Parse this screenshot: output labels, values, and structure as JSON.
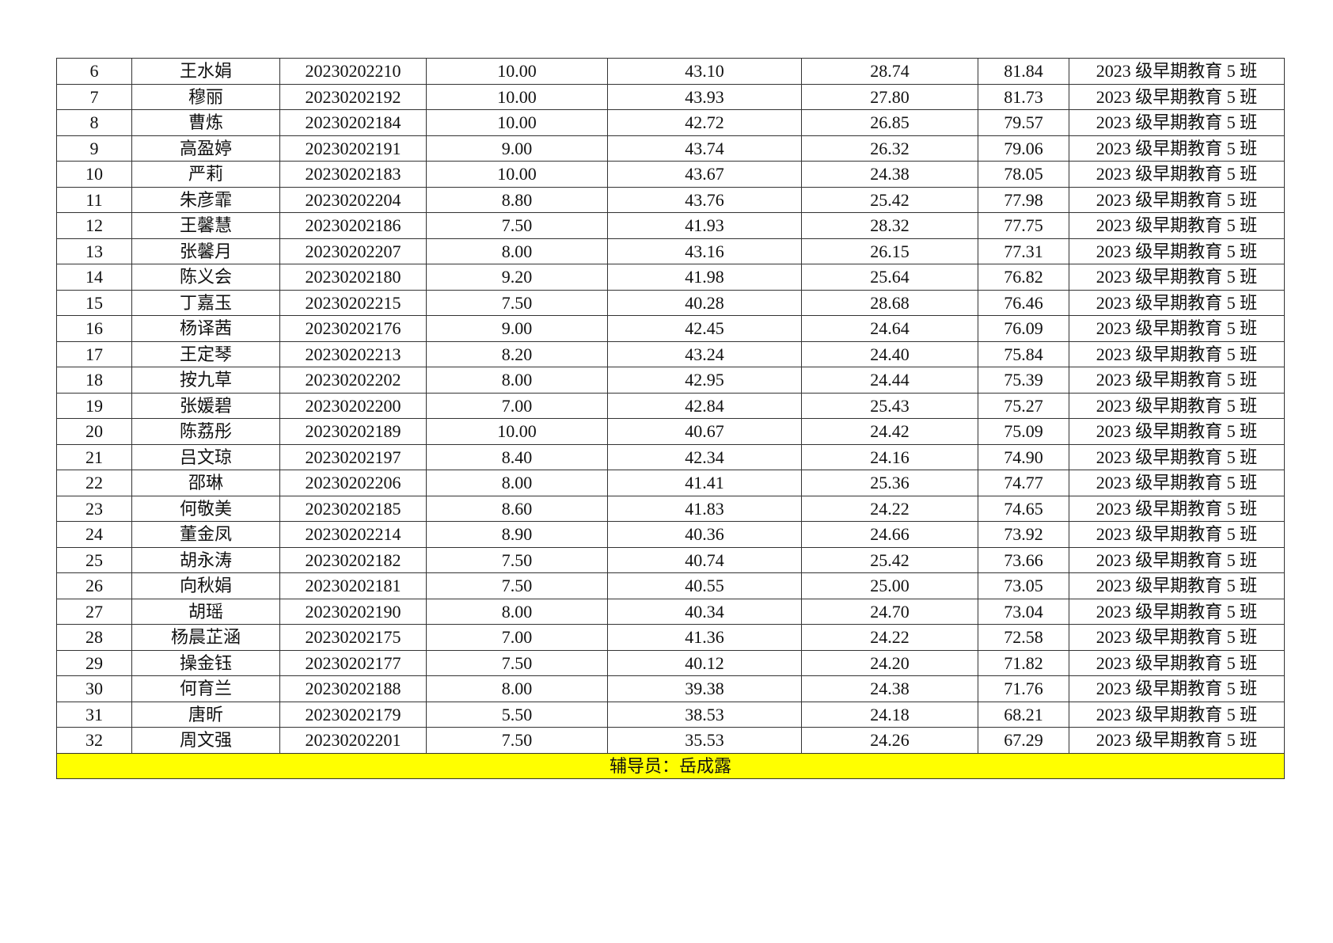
{
  "rows": [
    [
      "6",
      "王水娟",
      "20230202210",
      "10.00",
      "43.10",
      "28.74",
      "81.84",
      "2023 级早期教育 5 班"
    ],
    [
      "7",
      "穆丽",
      "20230202192",
      "10.00",
      "43.93",
      "27.80",
      "81.73",
      "2023 级早期教育 5 班"
    ],
    [
      "8",
      "曹炼",
      "20230202184",
      "10.00",
      "42.72",
      "26.85",
      "79.57",
      "2023 级早期教育 5 班"
    ],
    [
      "9",
      "高盈婷",
      "20230202191",
      "9.00",
      "43.74",
      "26.32",
      "79.06",
      "2023 级早期教育 5 班"
    ],
    [
      "10",
      "严莉",
      "20230202183",
      "10.00",
      "43.67",
      "24.38",
      "78.05",
      "2023 级早期教育 5 班"
    ],
    [
      "11",
      "朱彦霏",
      "20230202204",
      "8.80",
      "43.76",
      "25.42",
      "77.98",
      "2023 级早期教育 5 班"
    ],
    [
      "12",
      "王馨慧",
      "20230202186",
      "7.50",
      "41.93",
      "28.32",
      "77.75",
      "2023 级早期教育 5 班"
    ],
    [
      "13",
      "张馨月",
      "20230202207",
      "8.00",
      "43.16",
      "26.15",
      "77.31",
      "2023 级早期教育 5 班"
    ],
    [
      "14",
      "陈义会",
      "20230202180",
      "9.20",
      "41.98",
      "25.64",
      "76.82",
      "2023 级早期教育 5 班"
    ],
    [
      "15",
      "丁嘉玉",
      "20230202215",
      "7.50",
      "40.28",
      "28.68",
      "76.46",
      "2023 级早期教育 5 班"
    ],
    [
      "16",
      "杨译茜",
      "20230202176",
      "9.00",
      "42.45",
      "24.64",
      "76.09",
      "2023 级早期教育 5 班"
    ],
    [
      "17",
      "王定琴",
      "20230202213",
      "8.20",
      "43.24",
      "24.40",
      "75.84",
      "2023 级早期教育 5 班"
    ],
    [
      "18",
      "按九草",
      "20230202202",
      "8.00",
      "42.95",
      "24.44",
      "75.39",
      "2023 级早期教育 5 班"
    ],
    [
      "19",
      "张媛碧",
      "20230202200",
      "7.00",
      "42.84",
      "25.43",
      "75.27",
      "2023 级早期教育 5 班"
    ],
    [
      "20",
      "陈荔彤",
      "20230202189",
      "10.00",
      "40.67",
      "24.42",
      "75.09",
      "2023 级早期教育 5 班"
    ],
    [
      "21",
      "吕文琼",
      "20230202197",
      "8.40",
      "42.34",
      "24.16",
      "74.90",
      "2023 级早期教育 5 班"
    ],
    [
      "22",
      "邵琳",
      "20230202206",
      "8.00",
      "41.41",
      "25.36",
      "74.77",
      "2023 级早期教育 5 班"
    ],
    [
      "23",
      "何敬美",
      "20230202185",
      "8.60",
      "41.83",
      "24.22",
      "74.65",
      "2023 级早期教育 5 班"
    ],
    [
      "24",
      "董金凤",
      "20230202214",
      "8.90",
      "40.36",
      "24.66",
      "73.92",
      "2023 级早期教育 5 班"
    ],
    [
      "25",
      "胡永涛",
      "20230202182",
      "7.50",
      "40.74",
      "25.42",
      "73.66",
      "2023 级早期教育 5 班"
    ],
    [
      "26",
      "向秋娟",
      "20230202181",
      "7.50",
      "40.55",
      "25.00",
      "73.05",
      "2023 级早期教育 5 班"
    ],
    [
      "27",
      "胡瑶",
      "20230202190",
      "8.00",
      "40.34",
      "24.70",
      "73.04",
      "2023 级早期教育 5 班"
    ],
    [
      "28",
      "杨晨芷涵",
      "20230202175",
      "7.00",
      "41.36",
      "24.22",
      "72.58",
      "2023 级早期教育 5 班"
    ],
    [
      "29",
      "操金钰",
      "20230202177",
      "7.50",
      "40.12",
      "24.20",
      "71.82",
      "2023 级早期教育 5 班"
    ],
    [
      "30",
      "何育兰",
      "20230202188",
      "8.00",
      "39.38",
      "24.38",
      "71.76",
      "2023 级早期教育 5 班"
    ],
    [
      "31",
      "唐昕",
      "20230202179",
      "5.50",
      "38.53",
      "24.18",
      "68.21",
      "2023 级早期教育 5 班"
    ],
    [
      "32",
      "周文强",
      "20230202201",
      "7.50",
      "35.53",
      "24.26",
      "67.29",
      "2023 级早期教育 5 班"
    ]
  ],
  "footer": {
    "counselor": "辅导员：岳成露",
    "highlight_color": "#ffff00"
  }
}
